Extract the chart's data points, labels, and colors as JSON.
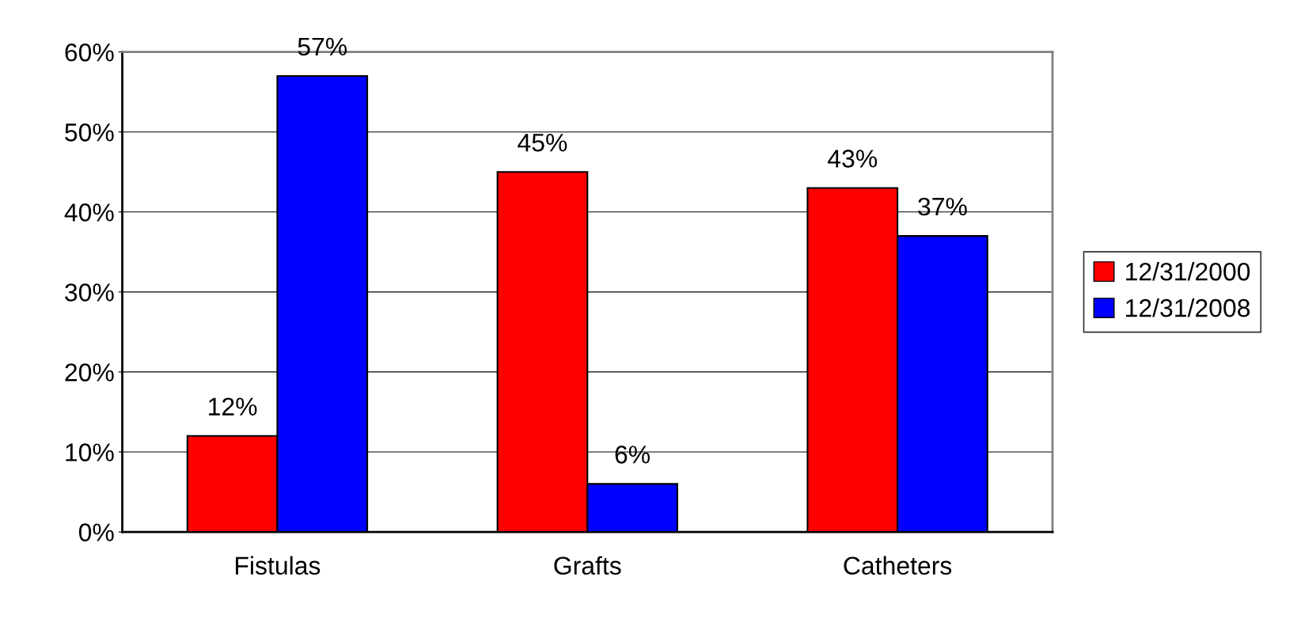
{
  "chart_data": {
    "type": "bar",
    "categories": [
      "Fistulas",
      "Grafts",
      "Catheters"
    ],
    "series": [
      {
        "name": "12/31/2000",
        "color": "#ff0000",
        "values": [
          12,
          45,
          43
        ],
        "value_labels": [
          "12%",
          "45%",
          "43%"
        ]
      },
      {
        "name": "12/31/2008",
        "color": "#0000ff",
        "values": [
          57,
          6,
          37
        ],
        "value_labels": [
          "57%",
          "6%",
          "37%"
        ]
      }
    ],
    "ylim": [
      0,
      60
    ],
    "yticks": [
      {
        "value": 0,
        "label": "0%"
      },
      {
        "value": 10,
        "label": "10%"
      },
      {
        "value": 20,
        "label": "20%"
      },
      {
        "value": 30,
        "label": "30%"
      },
      {
        "value": 40,
        "label": "40%"
      },
      {
        "value": 50,
        "label": "50%"
      },
      {
        "value": 60,
        "label": "60%"
      }
    ],
    "grid": "y",
    "legend": "right"
  }
}
